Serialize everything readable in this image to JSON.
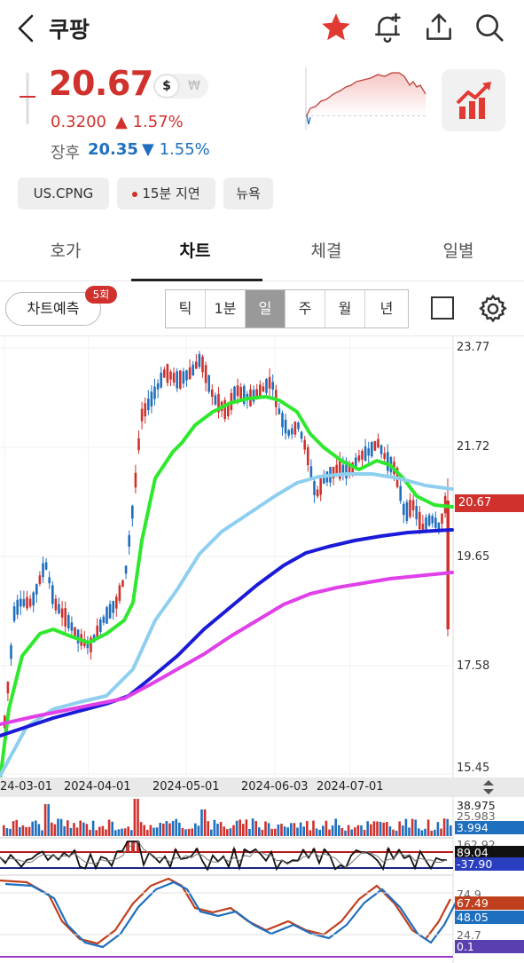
{
  "header": {
    "title": "쿠팡"
  },
  "quote": {
    "price": "20.67",
    "currency_usd": "$",
    "currency_krw": "₩",
    "change": "0.3200",
    "change_pct": "▲ 1.57%",
    "after_label": "장후",
    "after_price": "20.35",
    "after_change": "▼ 1.55%"
  },
  "chips": {
    "ticker": "US.CPNG",
    "delay": "15분 지연",
    "exchange": "뉴욕"
  },
  "tabs": [
    "호가",
    "차트",
    "체결",
    "일별"
  ],
  "chart_toolbar": {
    "predict_label": "차트예측",
    "predict_badge": "5회",
    "periods": [
      "틱",
      "1분",
      "일",
      "주",
      "월",
      "년"
    ],
    "selected_period": "일"
  },
  "chart_data": {
    "type": "candlestick",
    "y_ticks": [
      "23.77",
      "21.72",
      "20.67",
      "19.65",
      "17.58",
      "15.45"
    ],
    "current_price": "20.67",
    "x_ticks": [
      "24-03-01",
      "2024-04-01",
      "2024-05-01",
      "2024-06-03",
      "2024-07-01"
    ],
    "moving_averages": [
      {
        "color": "#2ee82e"
      },
      {
        "color": "#8ecff0"
      },
      {
        "color": "#1a1ad8"
      },
      {
        "color": "#e040e8"
      }
    ]
  },
  "sub_panels": {
    "volume_labels": [
      "38.975",
      "25.983",
      "3.994"
    ],
    "osc_labels": [
      "162.92",
      "89.04",
      "-37.90"
    ],
    "stoch_labels": [
      "74.9",
      "67.49",
      "48.05",
      "24.7",
      "0.1"
    ]
  },
  "colors": {
    "up": "#d0312d",
    "down": "#1f6fbf",
    "accent_red": "#e03a32"
  }
}
